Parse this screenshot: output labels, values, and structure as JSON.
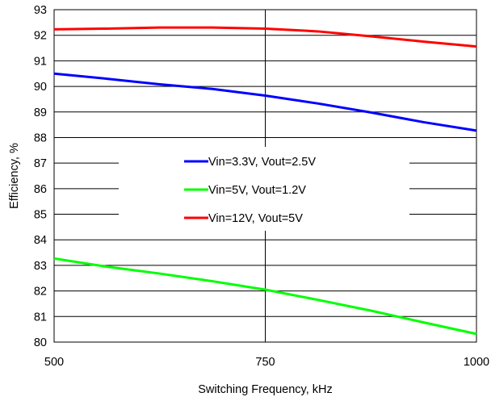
{
  "chart_data": {
    "type": "line",
    "title": "",
    "xlabel": "Switching Frequency, kHz",
    "ylabel": "Efficiency, %",
    "xlim": [
      500,
      1000
    ],
    "ylim": [
      80,
      93
    ],
    "xticks": [
      "500",
      "750",
      "1000"
    ],
    "yticks": [
      "80",
      "81",
      "82",
      "83",
      "84",
      "85",
      "86",
      "87",
      "88",
      "89",
      "90",
      "91",
      "92",
      "93"
    ],
    "grid": true,
    "legend_position": "center",
    "series": [
      {
        "name": "Vin=3.3V, Vout=2.5V",
        "color": "#0000ff",
        "x": [
          500,
          562.5,
          625,
          687.5,
          750,
          812.5,
          875,
          937.5,
          1000
        ],
        "y": [
          90.5,
          90.3,
          90.08,
          89.9,
          89.64,
          89.33,
          88.98,
          88.6,
          88.27
        ]
      },
      {
        "name": "Vin=5V, Vout=1.2V",
        "color": "#00ff00",
        "x": [
          500,
          562.5,
          625,
          687.5,
          750,
          812.5,
          875,
          937.5,
          1000
        ],
        "y": [
          83.27,
          82.95,
          82.68,
          82.38,
          82.05,
          81.65,
          81.23,
          80.77,
          80.32
        ]
      },
      {
        "name": "Vin=12V, Vout=5V",
        "color": "#ff0000",
        "x": [
          500,
          562.5,
          625,
          687.5,
          750,
          812.5,
          875,
          937.5,
          1000
        ],
        "y": [
          92.23,
          92.26,
          92.3,
          92.3,
          92.26,
          92.15,
          91.96,
          91.75,
          91.56
        ]
      }
    ]
  }
}
